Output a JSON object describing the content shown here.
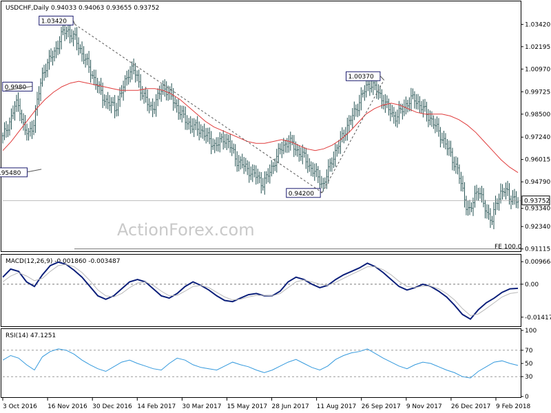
{
  "header": {
    "main": "USDCHF,Daily  0.94033 0.94063 0.93655 0.93752",
    "macd": "MACD(12,26,9) -0.001860 -0.003487",
    "rsi": "RSI(14) 47.1251"
  },
  "watermark": "ActionForex.com",
  "fe_label": "FE 100.0",
  "last_price_label": "0.93752",
  "colors": {
    "candle": "#1f4e4e",
    "ma": "#e03b3b",
    "macd": "#0b1f7a",
    "macd_signal": "#b8b8b8",
    "rsi": "#3399dd",
    "annotation_box": "#1a1a6e",
    "dashed": "#555555"
  },
  "chart_data": [
    {
      "type": "candlestick",
      "name": "price",
      "y_axis_ticks": [
        "1.03420",
        "1.02195",
        "1.00970",
        "0.99725",
        "0.98500",
        "0.97240",
        "0.96015",
        "0.94790",
        "0.93340",
        "0.92340",
        "0.91115"
      ],
      "ylim": [
        0.911,
        1.04
      ],
      "x_ticks": [
        "3 Oct 2016",
        "16 Nov 2016",
        "30 Dec 2016",
        "14 Feb 2017",
        "30 Mar 2017",
        "15 May 2017",
        "28 Jun 2017",
        "11 Aug 2017",
        "26 Sep 2017",
        "9 Nov 2017",
        "26 Dec 2017",
        "9 Feb 2018"
      ],
      "close_path": [
        0.972,
        0.978,
        0.983,
        0.991,
        0.988,
        0.976,
        0.974,
        0.979,
        0.992,
        1.005,
        1.012,
        1.015,
        1.019,
        1.025,
        1.03,
        1.031,
        1.028,
        1.025,
        1.02,
        1.015,
        1.01,
        1.005,
        1.0,
        0.995,
        0.992,
        0.99,
        0.988,
        0.995,
        1.0,
        1.008,
        1.01,
        1.005,
        0.998,
        0.993,
        0.988,
        0.99,
        0.995,
        1.0,
        0.998,
        0.994,
        0.99,
        0.986,
        0.982,
        0.98,
        0.978,
        0.977,
        0.976,
        0.973,
        0.97,
        0.968,
        0.969,
        0.972,
        0.97,
        0.965,
        0.96,
        0.958,
        0.956,
        0.954,
        0.952,
        0.95,
        0.947,
        0.95,
        0.955,
        0.96,
        0.965,
        0.968,
        0.97,
        0.968,
        0.965,
        0.963,
        0.96,
        0.956,
        0.953,
        0.95,
        0.946,
        0.952,
        0.96,
        0.965,
        0.97,
        0.976,
        0.98,
        0.985,
        0.99,
        0.995,
        1.0,
        1.002,
        0.999,
        0.996,
        0.992,
        0.988,
        0.985,
        0.983,
        0.987,
        0.99,
        0.992,
        0.994,
        0.991,
        0.988,
        0.985,
        0.982,
        0.978,
        0.974,
        0.97,
        0.965,
        0.96,
        0.955,
        0.945,
        0.936,
        0.931,
        0.94,
        0.945,
        0.935,
        0.93,
        0.928,
        0.935,
        0.942,
        0.945,
        0.938,
        0.94,
        0.9375
      ],
      "ma_path": [
        0.965,
        0.97,
        0.976,
        0.982,
        0.988,
        0.993,
        0.997,
        1.0,
        1.002,
        1.003,
        1.002,
        1.001,
        1.0,
        0.999,
        0.998,
        0.998,
        0.998,
        0.999,
        0.999,
        0.998,
        0.996,
        0.993,
        0.989,
        0.985,
        0.981,
        0.978,
        0.976,
        0.974,
        0.972,
        0.97,
        0.969,
        0.969,
        0.97,
        0.971,
        0.97,
        0.968,
        0.966,
        0.965,
        0.966,
        0.968,
        0.971,
        0.975,
        0.98,
        0.985,
        0.988,
        0.99,
        0.991,
        0.99,
        0.988,
        0.986,
        0.985,
        0.985,
        0.985,
        0.984,
        0.982,
        0.979,
        0.975,
        0.97,
        0.965,
        0.96,
        0.956,
        0.953
      ],
      "annotations": [
        {
          "text": "1.03420",
          "value": 1.0342
        },
        {
          "text": "0.9980",
          "value": 0.998
        },
        {
          "text": "0.95480",
          "value": 0.9548
        },
        {
          "text": "0.94200",
          "value": 0.942
        },
        {
          "text": "1.00370",
          "value": 1.0037
        }
      ],
      "fe_value": 0.9112
    },
    {
      "type": "line",
      "name": "MACD",
      "y_axis_ticks": [
        "0.009664",
        "0.00",
        "-0.014171"
      ],
      "ylim": [
        -0.0175,
        0.0115
      ],
      "series": [
        {
          "name": "MACD",
          "values": [
            0.003,
            0.0065,
            0.0055,
            0.001,
            -0.001,
            0.004,
            0.008,
            0.0095,
            0.0085,
            0.006,
            0.003,
            -0.001,
            -0.005,
            -0.0065,
            -0.005,
            -0.002,
            0.001,
            0.002,
            0.001,
            -0.002,
            -0.005,
            -0.006,
            -0.004,
            -0.001,
            0.001,
            -0.0005,
            -0.0025,
            -0.005,
            -0.007,
            -0.0075,
            -0.006,
            -0.0045,
            -0.004,
            -0.005,
            -0.005,
            -0.003,
            0.001,
            0.003,
            0.002,
            0.0,
            -0.0015,
            -0.0005,
            0.002,
            0.004,
            0.0055,
            0.007,
            0.009,
            0.0075,
            0.005,
            0.002,
            -0.001,
            -0.0025,
            -0.0015,
            0.0,
            -0.001,
            -0.003,
            -0.0055,
            -0.009,
            -0.013,
            -0.015,
            -0.011,
            -0.008,
            -0.006,
            -0.0035,
            -0.002,
            -0.0018
          ]
        },
        {
          "name": "Signal",
          "values": [
            0.001,
            0.0035,
            0.005,
            0.0035,
            0.0015,
            0.0025,
            0.0055,
            0.008,
            0.0085,
            0.0075,
            0.005,
            0.0015,
            -0.0025,
            -0.005,
            -0.0055,
            -0.004,
            -0.0015,
            0.0005,
            0.001,
            -0.0005,
            -0.003,
            -0.005,
            -0.0048,
            -0.003,
            -0.001,
            -0.0005,
            -0.0015,
            -0.0035,
            -0.0055,
            -0.0068,
            -0.0065,
            -0.0055,
            -0.0048,
            -0.0048,
            -0.005,
            -0.004,
            -0.0015,
            0.001,
            0.0018,
            0.001,
            0.0,
            -0.0005,
            0.0008,
            0.0025,
            0.0042,
            0.0058,
            0.0075,
            0.0075,
            0.0062,
            0.004,
            0.0012,
            -0.001,
            -0.0015,
            -0.0008,
            -0.0008,
            -0.002,
            -0.004,
            -0.0068,
            -0.0105,
            -0.0135,
            -0.0128,
            -0.0105,
            -0.008,
            -0.0055,
            -0.004,
            -0.0035
          ]
        }
      ]
    },
    {
      "type": "line",
      "name": "RSI",
      "y_axis_ticks": [
        "100",
        "70",
        "50",
        "30",
        "0"
      ],
      "ylim": [
        0,
        100
      ],
      "series": [
        {
          "name": "RSI",
          "values": [
            55,
            62,
            58,
            48,
            40,
            60,
            68,
            72,
            70,
            64,
            55,
            48,
            42,
            38,
            45,
            52,
            55,
            50,
            46,
            42,
            40,
            50,
            58,
            55,
            48,
            44,
            42,
            40,
            46,
            52,
            48,
            45,
            40,
            36,
            40,
            46,
            52,
            56,
            50,
            44,
            40,
            46,
            56,
            62,
            66,
            68,
            72,
            65,
            58,
            52,
            46,
            42,
            48,
            52,
            50,
            45,
            40,
            36,
            30,
            28,
            38,
            45,
            52,
            54,
            50,
            47
          ]
        }
      ]
    }
  ]
}
